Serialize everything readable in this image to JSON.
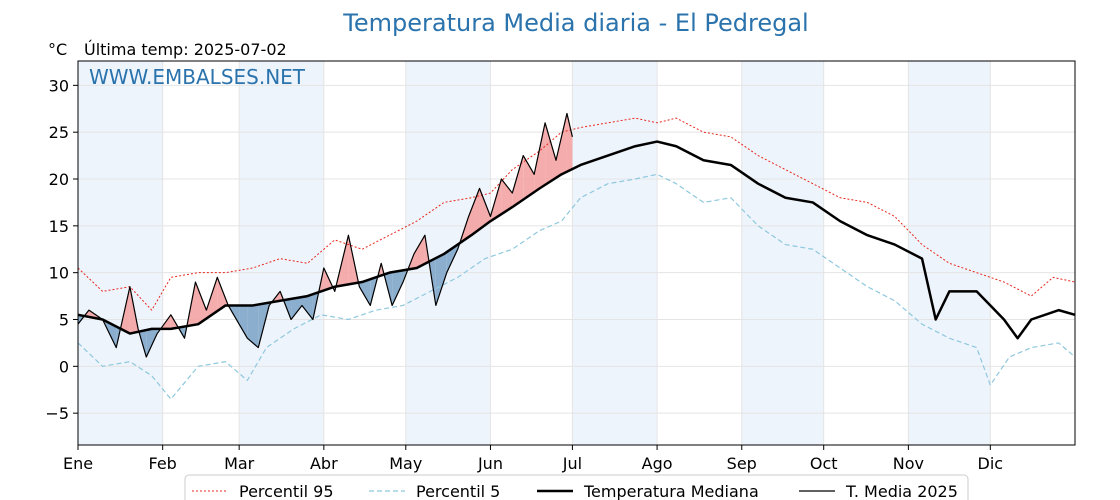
{
  "chart_data": {
    "type": "line",
    "title": "Temperatura Media diaria - El Pedregal",
    "unit": "°C",
    "last_temp_label": "Última temp: 2025-07-02",
    "watermark": "WWW.EMBALSES.NET",
    "ylim": [
      -8.4,
      32.6
    ],
    "yticks": [
      30,
      25,
      20,
      15,
      10,
      5,
      0,
      -5
    ],
    "ytick_labels": [
      "30",
      "25",
      "20",
      "15",
      "10",
      "5",
      "0",
      "−5"
    ],
    "xlim": [
      1,
      366
    ],
    "x_unit": "day of year",
    "months": [
      {
        "label": "Ene",
        "start": 1
      },
      {
        "label": "Feb",
        "start": 32
      },
      {
        "label": "Mar",
        "start": 60
      },
      {
        "label": "Abr",
        "start": 91
      },
      {
        "label": "May",
        "start": 121
      },
      {
        "label": "Jun",
        "start": 152
      },
      {
        "label": "Jul",
        "start": 182
      },
      {
        "label": "Ago",
        "start": 213
      },
      {
        "label": "Sep",
        "start": 244
      },
      {
        "label": "Oct",
        "start": 274
      },
      {
        "label": "Nov",
        "start": 305
      },
      {
        "label": "Dic",
        "start": 335
      }
    ],
    "shaded_month_spans": [
      [
        1,
        32
      ],
      [
        60,
        91
      ],
      [
        121,
        152
      ],
      [
        182,
        213
      ],
      [
        244,
        274
      ],
      [
        305,
        335
      ]
    ],
    "grid": true,
    "legend_position": "bottom",
    "series": [
      {
        "name": "Percentil 95",
        "style": "dotted",
        "color": "#e8281e",
        "points": [
          [
            1,
            10.5
          ],
          [
            10,
            8.0
          ],
          [
            20,
            8.5
          ],
          [
            28,
            6.0
          ],
          [
            35,
            9.5
          ],
          [
            45,
            10.0
          ],
          [
            55,
            10.0
          ],
          [
            65,
            10.5
          ],
          [
            75,
            11.5
          ],
          [
            85,
            11.0
          ],
          [
            95,
            13.5
          ],
          [
            105,
            12.5
          ],
          [
            115,
            14.0
          ],
          [
            125,
            15.5
          ],
          [
            135,
            17.5
          ],
          [
            145,
            18.0
          ],
          [
            152,
            18.5
          ],
          [
            160,
            21.0
          ],
          [
            170,
            23.0
          ],
          [
            178,
            25.0
          ],
          [
            185,
            25.5
          ],
          [
            195,
            26.0
          ],
          [
            205,
            26.5
          ],
          [
            213,
            26.0
          ],
          [
            220,
            26.5
          ],
          [
            230,
            25.0
          ],
          [
            240,
            24.5
          ],
          [
            250,
            22.5
          ],
          [
            260,
            21.0
          ],
          [
            270,
            19.5
          ],
          [
            280,
            18.0
          ],
          [
            290,
            17.5
          ],
          [
            300,
            16.0
          ],
          [
            310,
            13.0
          ],
          [
            320,
            11.0
          ],
          [
            330,
            10.0
          ],
          [
            340,
            9.0
          ],
          [
            350,
            7.5
          ],
          [
            358,
            9.5
          ],
          [
            366,
            9.0
          ]
        ]
      },
      {
        "name": "Percentil 5",
        "style": "dashed",
        "color": "#8ec8de",
        "points": [
          [
            1,
            2.5
          ],
          [
            10,
            0.0
          ],
          [
            20,
            0.5
          ],
          [
            28,
            -1.0
          ],
          [
            35,
            -3.5
          ],
          [
            45,
            0.0
          ],
          [
            55,
            0.5
          ],
          [
            63,
            -1.5
          ],
          [
            70,
            2.0
          ],
          [
            80,
            4.0
          ],
          [
            90,
            5.5
          ],
          [
            100,
            5.0
          ],
          [
            110,
            6.0
          ],
          [
            120,
            6.5
          ],
          [
            130,
            8.0
          ],
          [
            140,
            9.5
          ],
          [
            150,
            11.5
          ],
          [
            160,
            12.5
          ],
          [
            170,
            14.5
          ],
          [
            178,
            15.5
          ],
          [
            185,
            18.0
          ],
          [
            195,
            19.5
          ],
          [
            205,
            20.0
          ],
          [
            213,
            20.5
          ],
          [
            220,
            19.5
          ],
          [
            230,
            17.5
          ],
          [
            240,
            18.0
          ],
          [
            250,
            15.0
          ],
          [
            260,
            13.0
          ],
          [
            270,
            12.5
          ],
          [
            280,
            10.5
          ],
          [
            290,
            8.5
          ],
          [
            300,
            7.0
          ],
          [
            310,
            4.5
          ],
          [
            320,
            3.0
          ],
          [
            330,
            2.0
          ],
          [
            335,
            -2.0
          ],
          [
            342,
            1.0
          ],
          [
            350,
            2.0
          ],
          [
            360,
            2.5
          ],
          [
            366,
            1.0
          ]
        ]
      },
      {
        "name": "Temperatura Mediana",
        "style": "thick",
        "color": "#000000",
        "points": [
          [
            1,
            5.5
          ],
          [
            10,
            5.0
          ],
          [
            20,
            3.5
          ],
          [
            28,
            4.0
          ],
          [
            35,
            4.0
          ],
          [
            45,
            4.5
          ],
          [
            55,
            6.5
          ],
          [
            65,
            6.5
          ],
          [
            75,
            7.0
          ],
          [
            85,
            7.5
          ],
          [
            95,
            8.5
          ],
          [
            105,
            9.0
          ],
          [
            115,
            10.0
          ],
          [
            125,
            10.5
          ],
          [
            135,
            12.0
          ],
          [
            145,
            14.0
          ],
          [
            152,
            15.5
          ],
          [
            160,
            17.0
          ],
          [
            170,
            19.0
          ],
          [
            178,
            20.5
          ],
          [
            185,
            21.5
          ],
          [
            195,
            22.5
          ],
          [
            205,
            23.5
          ],
          [
            213,
            24.0
          ],
          [
            220,
            23.5
          ],
          [
            230,
            22.0
          ],
          [
            240,
            21.5
          ],
          [
            250,
            19.5
          ],
          [
            260,
            18.0
          ],
          [
            270,
            17.5
          ],
          [
            280,
            15.5
          ],
          [
            290,
            14.0
          ],
          [
            300,
            13.0
          ],
          [
            310,
            11.5
          ],
          [
            315,
            5.0
          ],
          [
            320,
            8.0
          ],
          [
            330,
            8.0
          ],
          [
            340,
            5.0
          ],
          [
            345,
            3.0
          ],
          [
            350,
            5.0
          ],
          [
            360,
            6.0
          ],
          [
            366,
            5.5
          ]
        ]
      },
      {
        "name": "T. Media 2025",
        "style": "thin",
        "color": "#000000",
        "points": [
          [
            1,
            4.5
          ],
          [
            5,
            6.0
          ],
          [
            10,
            5.0
          ],
          [
            15,
            2.0
          ],
          [
            20,
            8.5
          ],
          [
            23,
            4.0
          ],
          [
            26,
            1.0
          ],
          [
            30,
            3.5
          ],
          [
            35,
            5.5
          ],
          [
            40,
            3.0
          ],
          [
            44,
            9.0
          ],
          [
            48,
            6.0
          ],
          [
            52,
            9.5
          ],
          [
            56,
            6.5
          ],
          [
            60,
            4.5
          ],
          [
            63,
            3.0
          ],
          [
            67,
            2.0
          ],
          [
            71,
            6.5
          ],
          [
            75,
            8.0
          ],
          [
            79,
            5.0
          ],
          [
            83,
            6.5
          ],
          [
            87,
            5.0
          ],
          [
            91,
            10.5
          ],
          [
            95,
            8.0
          ],
          [
            100,
            14.0
          ],
          [
            104,
            8.5
          ],
          [
            108,
            6.5
          ],
          [
            112,
            11.0
          ],
          [
            116,
            6.5
          ],
          [
            120,
            9.0
          ],
          [
            124,
            12.0
          ],
          [
            128,
            14.0
          ],
          [
            132,
            6.5
          ],
          [
            136,
            10.0
          ],
          [
            140,
            12.5
          ],
          [
            144,
            16.0
          ],
          [
            148,
            19.0
          ],
          [
            152,
            16.0
          ],
          [
            156,
            20.0
          ],
          [
            160,
            18.5
          ],
          [
            164,
            22.5
          ],
          [
            168,
            20.5
          ],
          [
            172,
            26.0
          ],
          [
            176,
            22.0
          ],
          [
            180,
            27.0
          ],
          [
            182,
            24.5
          ]
        ]
      }
    ],
    "legend": [
      "Percentil 95",
      "Percentil 5",
      "Temperatura Mediana",
      "T. Media 2025"
    ]
  }
}
